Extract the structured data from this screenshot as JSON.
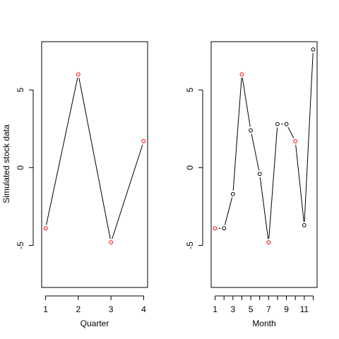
{
  "figure": {
    "ylabel": "Simulated stock data"
  },
  "chart_data": [
    {
      "type": "line",
      "xlabel": "Quarter",
      "ylabel": "Simulated stock data",
      "x": [
        1,
        2,
        3,
        4
      ],
      "y": [
        -3.9,
        6.0,
        -4.8,
        1.7
      ],
      "xlim": [
        0.88,
        4.12
      ],
      "ylim": [
        -7.7,
        8.1
      ],
      "xticks": [
        1,
        2,
        3,
        4
      ],
      "yticks": [
        -5,
        0,
        5
      ],
      "point_color": "#ff0000",
      "line_color": "#000000",
      "highlight_all": true
    },
    {
      "type": "line",
      "xlabel": "Month",
      "ylabel": "",
      "x": [
        1,
        2,
        3,
        4,
        5,
        6,
        7,
        8,
        9,
        10,
        11,
        12
      ],
      "y": [
        -3.9,
        -3.9,
        -1.7,
        6.0,
        2.4,
        -0.4,
        -4.8,
        2.8,
        2.8,
        1.7,
        -3.7,
        7.6
      ],
      "xlim": [
        0.56,
        12.44
      ],
      "ylim": [
        -7.7,
        8.1
      ],
      "xticks": [
        1,
        2,
        3,
        4,
        5,
        6,
        7,
        8,
        9,
        10,
        11,
        12
      ],
      "xtick_labels_shown": [
        1,
        3,
        5,
        7,
        9,
        11
      ],
      "yticks": [
        -5,
        0,
        5
      ],
      "highlight_x": [
        1,
        4,
        7,
        10
      ],
      "point_color": "#000000",
      "highlight_color": "#ff0000",
      "line_color": "#000000"
    }
  ]
}
